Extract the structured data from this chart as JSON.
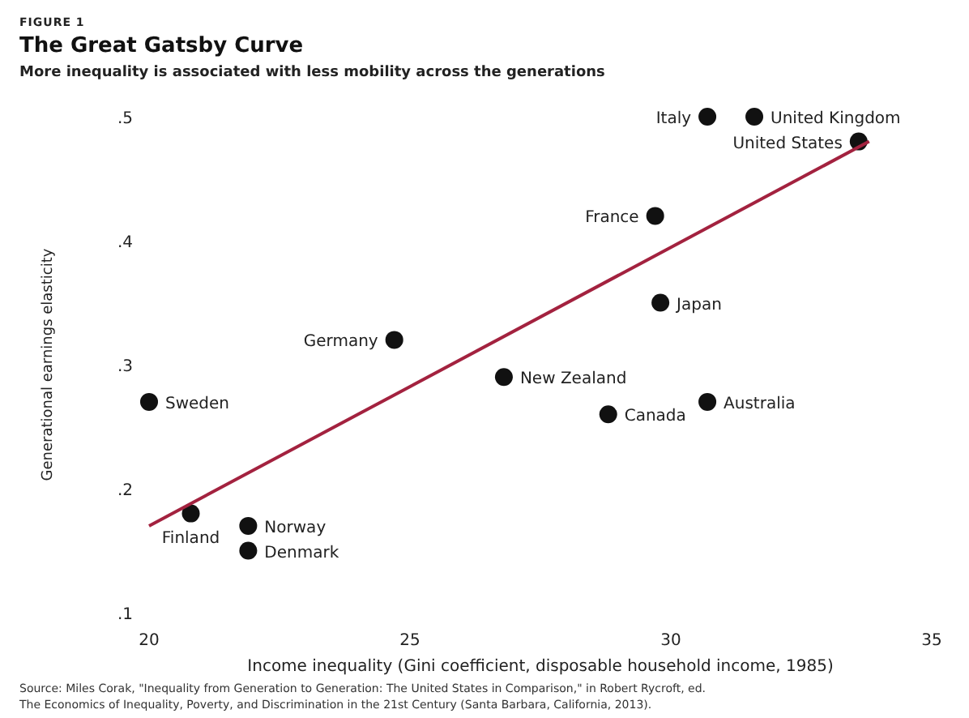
{
  "chart_data": {
    "type": "scatter",
    "title": "The Great Gatsby Curve",
    "subtitle": "More inequality is associated with less mobility across the generations",
    "xlabel": "Income inequality (Gini coefficient, disposable household income, 1985)",
    "ylabel": "Generational earnings elasticity",
    "annotations": [
      "FIGURE 1",
      "Source: Miles Corak, \"Inequality from Generation to Generation: The United States in Comparison,\" in Robert Rycroft, ed. The Economics of Inequality, Poverty, and Discrimination in the 21st Century (Santa Barbara, California, 2013)."
    ],
    "xlim": [
      20,
      35
    ],
    "xticks": [
      20,
      25,
      30,
      35
    ],
    "ylim": [
      0.1,
      0.5
    ],
    "yticks": [
      {
        "value": 0.1,
        "label": ".1"
      },
      {
        "value": 0.2,
        "label": ".2"
      },
      {
        "value": 0.3,
        "label": ".3"
      },
      {
        "value": 0.4,
        "label": ".4"
      },
      {
        "value": 0.5,
        "label": ".5"
      }
    ],
    "marker": "circle",
    "series": [
      {
        "name": "Sweden",
        "color": "#111111",
        "x": [
          20
        ],
        "values": [
          0.27
        ]
      },
      {
        "name": "Finland",
        "color": "#111111",
        "x": [
          20.8
        ],
        "values": [
          0.18
        ]
      },
      {
        "name": "Norway",
        "color": "#111111",
        "x": [
          21.9
        ],
        "values": [
          0.17
        ]
      },
      {
        "name": "Denmark",
        "color": "#111111",
        "x": [
          21.9
        ],
        "values": [
          0.15
        ]
      },
      {
        "name": "Germany",
        "color": "#111111",
        "x": [
          24.7
        ],
        "values": [
          0.32
        ]
      },
      {
        "name": "New Zealand",
        "color": "#111111",
        "x": [
          26.8
        ],
        "values": [
          0.29
        ]
      },
      {
        "name": "Canada",
        "color": "#111111",
        "x": [
          28.8
        ],
        "values": [
          0.26
        ]
      },
      {
        "name": "Australia",
        "color": "#111111",
        "x": [
          30.7
        ],
        "values": [
          0.27
        ]
      },
      {
        "name": "Japan",
        "color": "#111111",
        "x": [
          29.8
        ],
        "values": [
          0.35
        ]
      },
      {
        "name": "France",
        "color": "#111111",
        "x": [
          29.7
        ],
        "values": [
          0.42
        ]
      },
      {
        "name": "Italy",
        "color": "#111111",
        "x": [
          30.7
        ],
        "values": [
          0.5
        ]
      },
      {
        "name": "United Kingdom",
        "color": "#111111",
        "x": [
          31.6
        ],
        "values": [
          0.5
        ]
      },
      {
        "name": "United States",
        "color": "#111111",
        "x": [
          33.6
        ],
        "values": [
          0.48
        ]
      },
      {
        "type": "line",
        "color": "#a3223f",
        "x": [
          20,
          33.8
        ],
        "values": [
          0.17,
          0.48
        ],
        "marker": "none",
        "line_style": "solid"
      }
    ]
  }
}
